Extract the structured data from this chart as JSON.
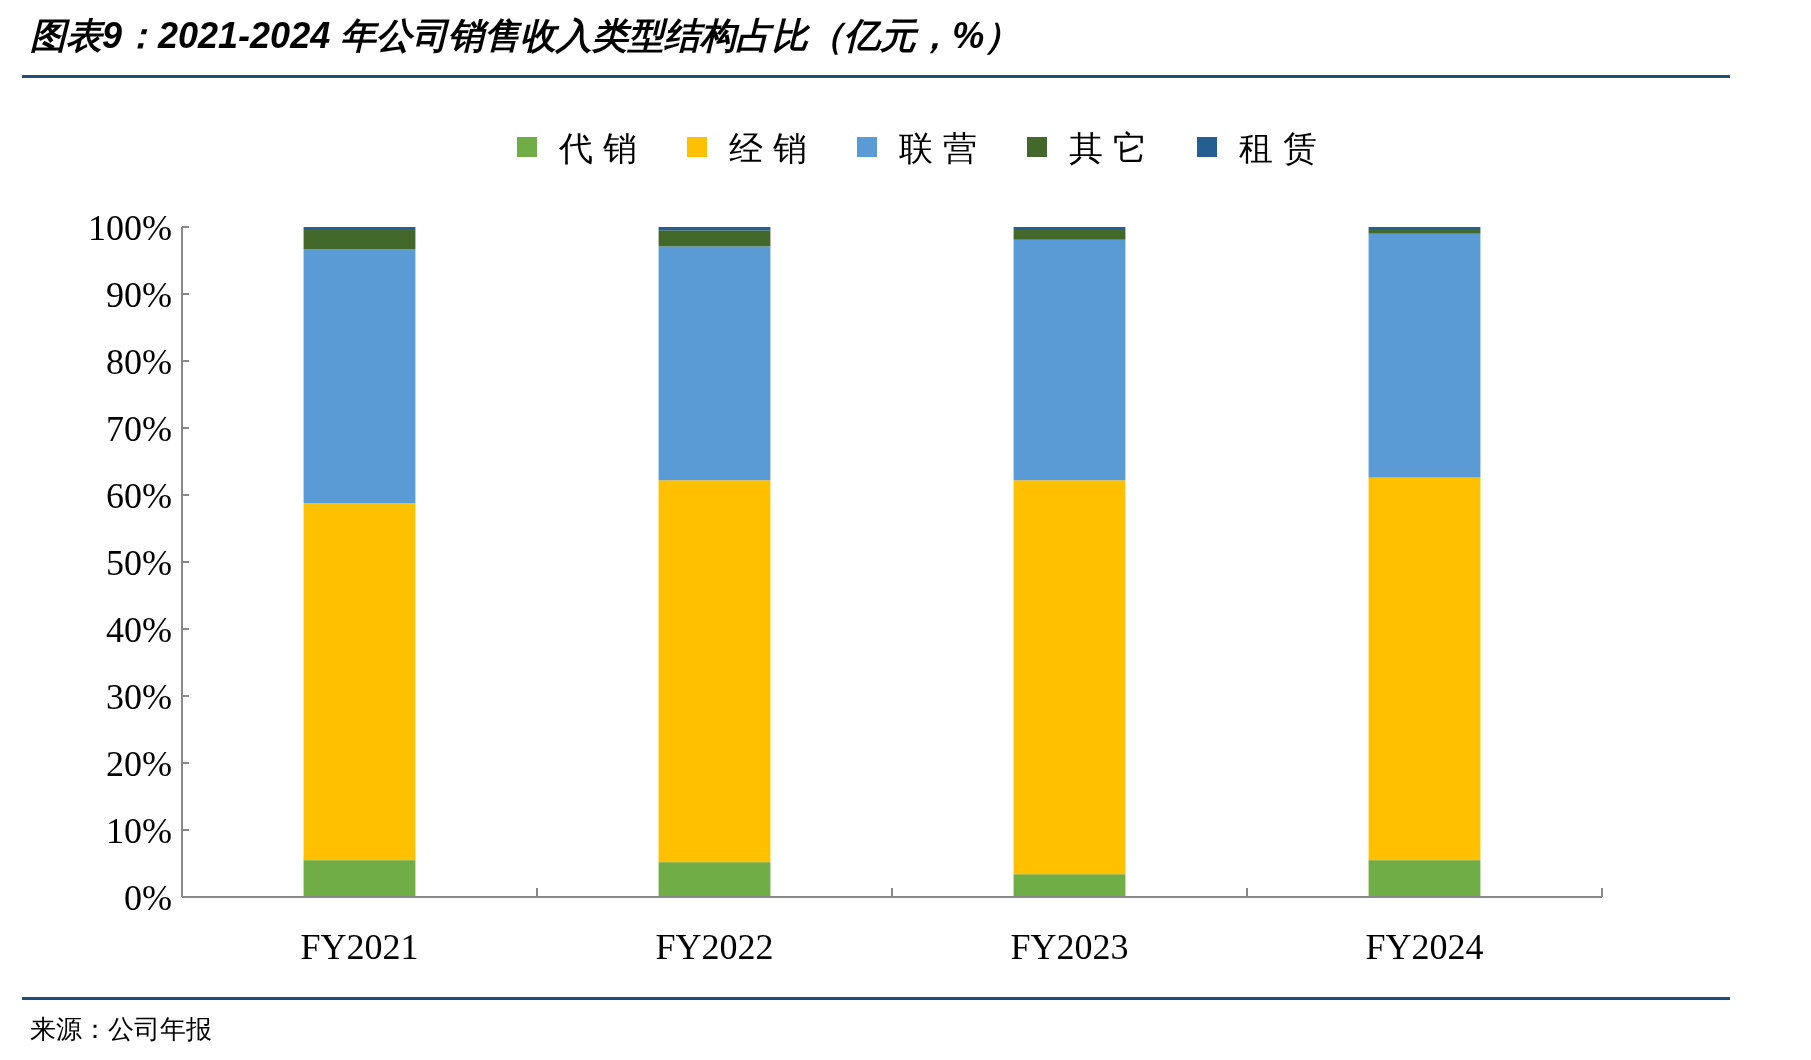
{
  "chart_data": {
    "type": "bar",
    "title": "图表9：2021-2024 年公司销售收入类型结构占比（亿元，%）",
    "categories": [
      "FY2021",
      "FY2022",
      "FY2023",
      "FY2024"
    ],
    "stacked": true,
    "series": [
      {
        "name": "代销",
        "color": "#70ad47",
        "values": [
          5.5,
          5.2,
          3.4,
          5.5
        ]
      },
      {
        "name": "经销",
        "color": "#ffc000",
        "values": [
          53.3,
          57.0,
          58.8,
          57.1
        ]
      },
      {
        "name": "联营",
        "color": "#5b9bd5",
        "values": [
          37.9,
          34.9,
          35.9,
          36.4
        ]
      },
      {
        "name": "其它",
        "color": "#43682b",
        "values": [
          3.0,
          2.4,
          1.6,
          0.7
        ]
      },
      {
        "name": "租赁",
        "color": "#255e91",
        "values": [
          0.3,
          0.5,
          0.3,
          0.3
        ]
      }
    ],
    "ylim": [
      0,
      100
    ],
    "yticks": [
      {
        "value": 0,
        "label": "0%"
      },
      {
        "value": 10,
        "label": "10%"
      },
      {
        "value": 20,
        "label": "20%"
      },
      {
        "value": 30,
        "label": "30%"
      },
      {
        "value": 40,
        "label": "40%"
      },
      {
        "value": 50,
        "label": "50%"
      },
      {
        "value": 60,
        "label": "60%"
      },
      {
        "value": 70,
        "label": "70%"
      },
      {
        "value": 80,
        "label": "80%"
      },
      {
        "value": 90,
        "label": "90%"
      },
      {
        "value": 100,
        "label": "100%"
      }
    ],
    "legend": "top",
    "annotations": [
      "来源：公司年报"
    ]
  }
}
